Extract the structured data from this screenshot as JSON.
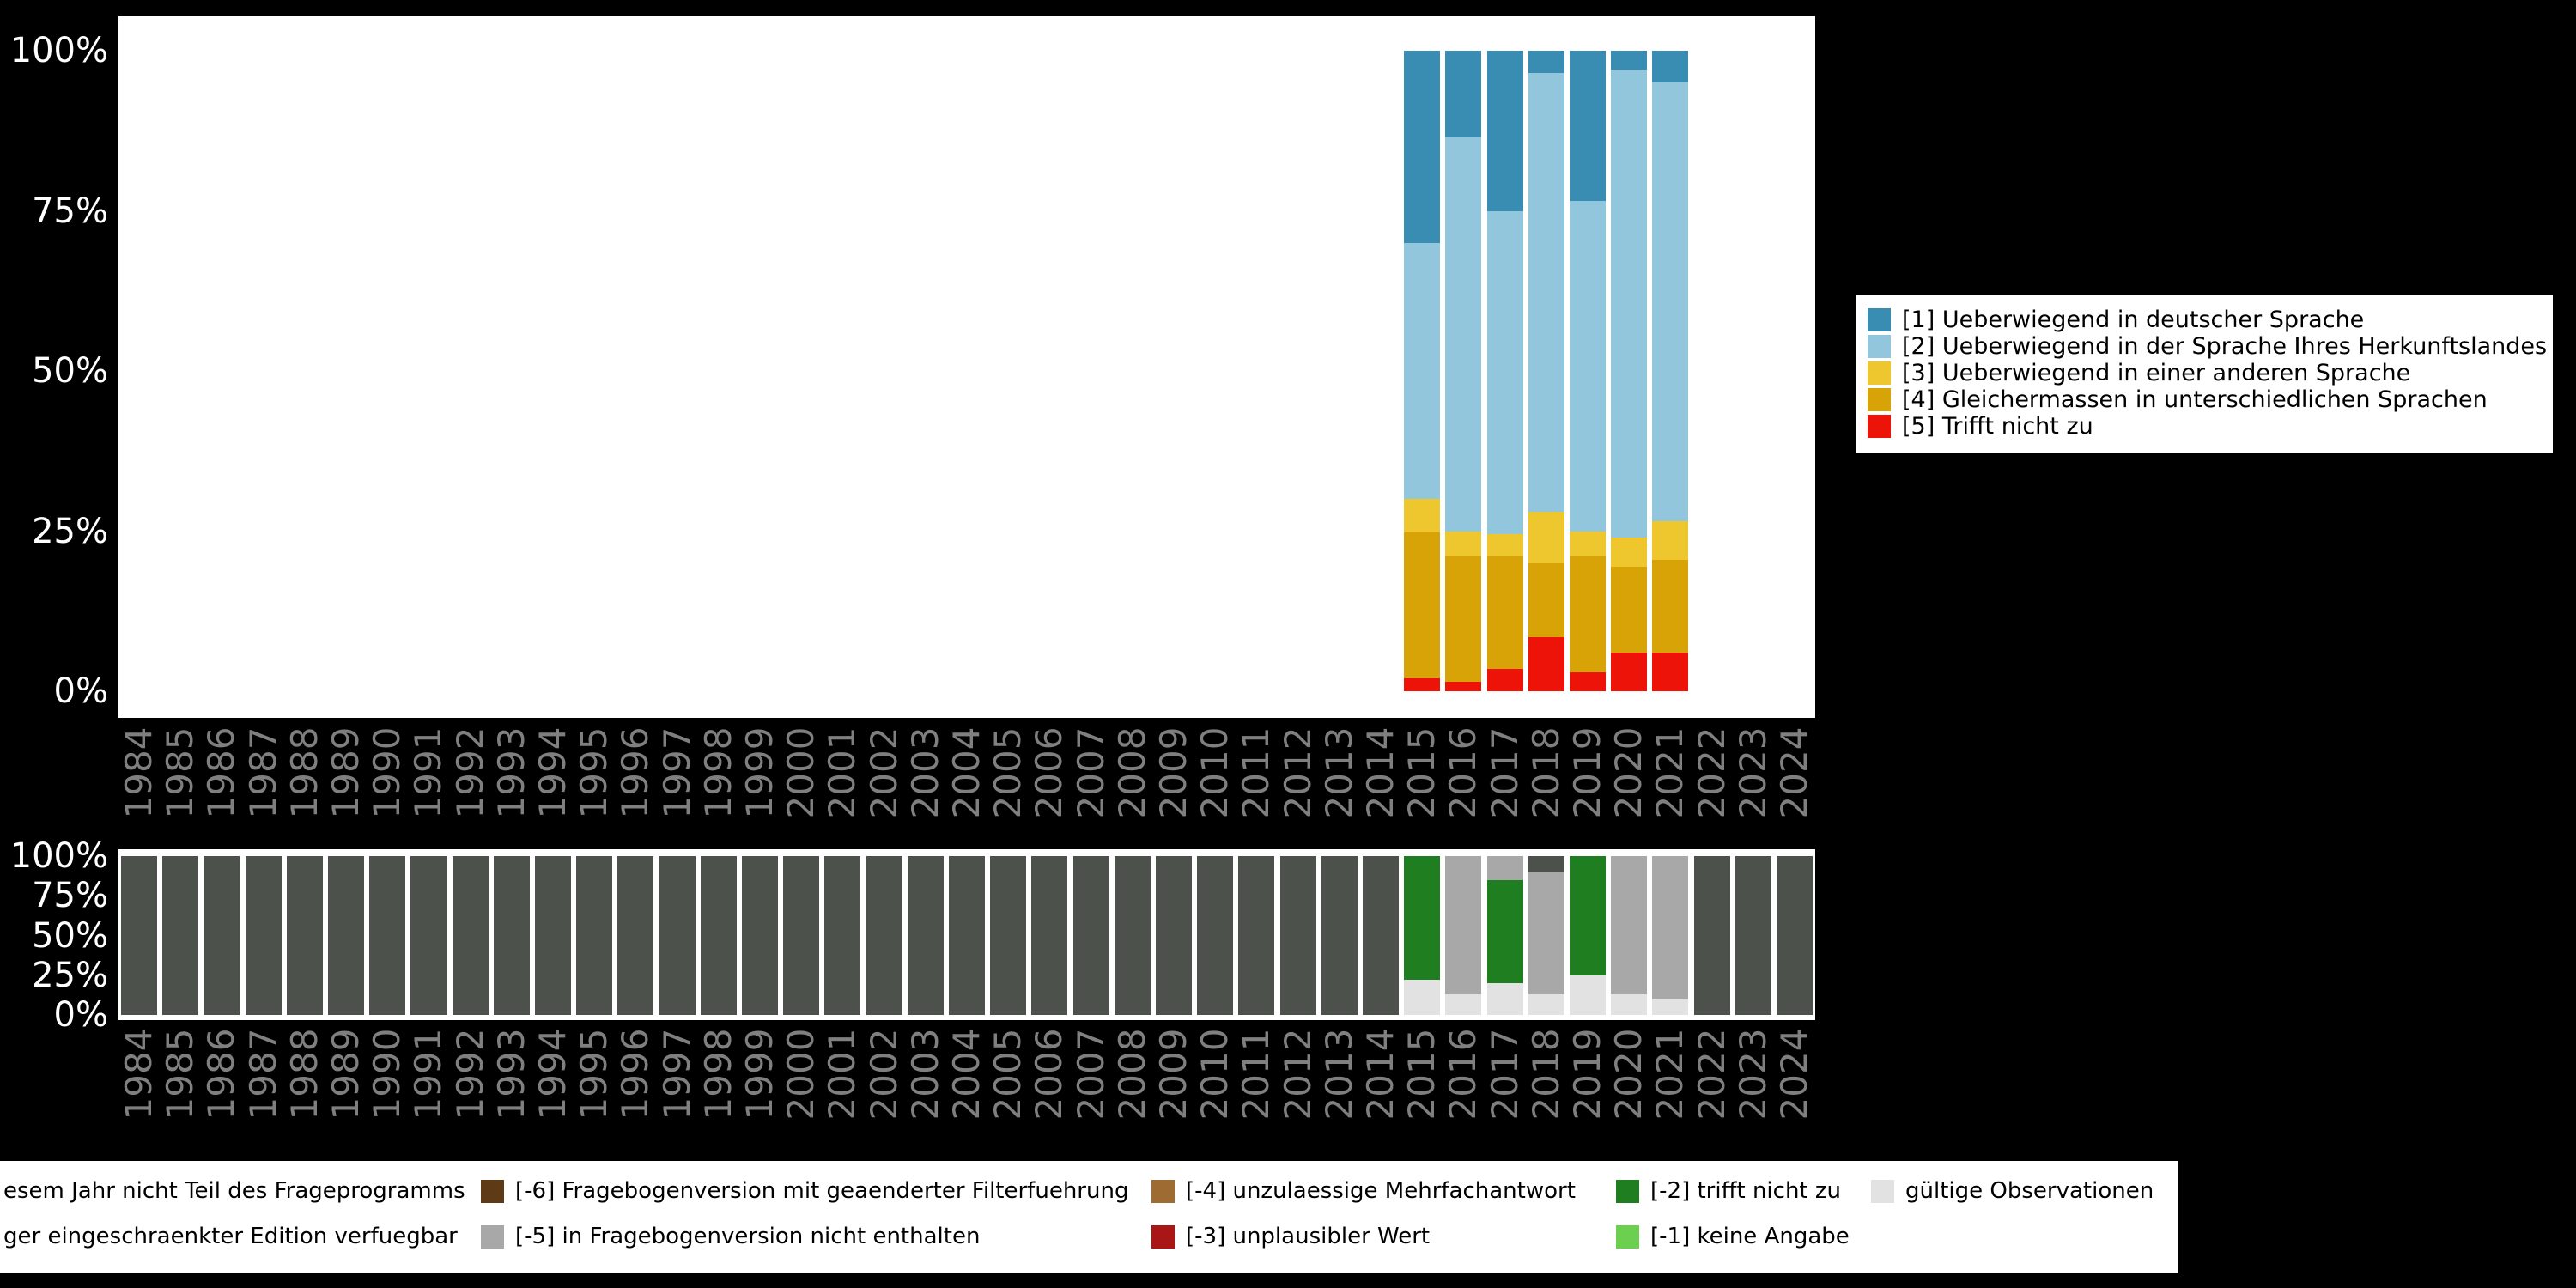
{
  "colors": {
    "background": "#000000",
    "plot_bg": "#ffffff",
    "tick_label": "#ffffff",
    "year_label": "#7f7f7f",
    "legend_bg": "#ffffff",
    "legend_text": "#000000",
    "cat1": "#3a8db2",
    "cat2": "#92c6dd",
    "cat3": "#edc72d",
    "cat4": "#d8a307",
    "cat5": "#ee1309",
    "not_in_program": "#4c524b",
    "not_in_version": "#a8a8a8",
    "valid": "#e2e2e2",
    "minus1": "#6ccf4f",
    "minus2": "#1f7e1f",
    "minus3": "#a81616",
    "minus4": "#9e6b33",
    "minus6": "#5e3a16"
  },
  "years": [
    1984,
    1985,
    1986,
    1987,
    1988,
    1989,
    1990,
    1991,
    1992,
    1993,
    1994,
    1995,
    1996,
    1997,
    1998,
    1999,
    2000,
    2001,
    2002,
    2003,
    2004,
    2005,
    2006,
    2007,
    2008,
    2009,
    2010,
    2011,
    2012,
    2013,
    2014,
    2015,
    2016,
    2017,
    2018,
    2019,
    2020,
    2021,
    2022,
    2023,
    2024
  ],
  "chart_data": [
    {
      "id": "answers-by-year",
      "type": "bar",
      "stacked": true,
      "value_unit": "percent",
      "ylim": [
        0,
        100
      ],
      "grid": false,
      "legend_position": "right",
      "y_ticks": [
        {
          "label": "100%",
          "pct": 100
        },
        {
          "label": "75%",
          "pct": 75
        },
        {
          "label": "50%",
          "pct": 50
        },
        {
          "label": "25%",
          "pct": 25
        },
        {
          "label": "0%",
          "pct": 0
        }
      ],
      "bar_years": [
        2015,
        2016,
        2017,
        2018,
        2019,
        2020,
        2021
      ],
      "series": [
        {
          "label": "[1] Ueberwiegend in deutscher Sprache",
          "color_key": "cat1",
          "values": [
            30,
            13.5,
            25,
            3.5,
            23.5,
            3,
            5
          ]
        },
        {
          "label": "[2] Ueberwiegend in der Sprache Ihres Herkunftslandes",
          "color_key": "cat2",
          "values": [
            40,
            61.5,
            50.5,
            68.5,
            51.5,
            73,
            68.5
          ]
        },
        {
          "label": "[3] Ueberwiegend in einer anderen Sprache",
          "color_key": "cat3",
          "values": [
            5,
            4,
            3.5,
            8,
            4,
            4.5,
            6
          ]
        },
        {
          "label": "[4] Gleichermassen in unterschiedlichen Sprachen",
          "color_key": "cat4",
          "values": [
            23,
            19.5,
            17.5,
            11.5,
            18,
            13.5,
            14.5
          ]
        },
        {
          "label": "[5] Trifft nicht zu",
          "color_key": "cat5",
          "values": [
            2,
            1.5,
            3.5,
            8.5,
            3,
            6,
            6
          ]
        }
      ]
    },
    {
      "id": "missings-by-year",
      "type": "bar",
      "stacked": true,
      "value_unit": "percent",
      "ylim": [
        0,
        100
      ],
      "grid": false,
      "y_ticks": [
        {
          "label": "100%",
          "pct": 100
        },
        {
          "label": "75%",
          "pct": 75
        },
        {
          "label": "50%",
          "pct": 50
        },
        {
          "label": "25%",
          "pct": 25
        },
        {
          "label": "0%",
          "pct": 0
        }
      ],
      "default_segments": [
        {
          "color_key": "not_in_program",
          "pct": 100
        }
      ],
      "overrides": {
        "2015": [
          {
            "color_key": "valid",
            "pct": 22
          },
          {
            "color_key": "minus2",
            "pct": 78
          }
        ],
        "2016": [
          {
            "color_key": "valid",
            "pct": 13
          },
          {
            "color_key": "not_in_version",
            "pct": 87
          }
        ],
        "2017": [
          {
            "color_key": "valid",
            "pct": 20
          },
          {
            "color_key": "minus2",
            "pct": 65
          },
          {
            "color_key": "not_in_version",
            "pct": 15
          }
        ],
        "2018": [
          {
            "color_key": "valid",
            "pct": 13
          },
          {
            "color_key": "not_in_version",
            "pct": 77
          },
          {
            "color_key": "not_in_program",
            "pct": 10
          }
        ],
        "2019": [
          {
            "color_key": "valid",
            "pct": 25
          },
          {
            "color_key": "minus2",
            "pct": 75
          }
        ],
        "2020": [
          {
            "color_key": "valid",
            "pct": 13
          },
          {
            "color_key": "not_in_version",
            "pct": 87
          }
        ],
        "2021": [
          {
            "color_key": "valid",
            "pct": 10
          },
          {
            "color_key": "not_in_version",
            "pct": 90
          }
        ]
      }
    }
  ],
  "top_legend": {
    "items": [
      {
        "label": "[1] Ueberwiegend in deutscher Sprache",
        "color_key": "cat1"
      },
      {
        "label": "[2] Ueberwiegend in der Sprache Ihres Herkunftslandes",
        "color_key": "cat2"
      },
      {
        "label": "[3] Ueberwiegend in einer anderen Sprache",
        "color_key": "cat3"
      },
      {
        "label": "[4] Gleichermassen in unterschiedlichen Sprachen",
        "color_key": "cat4"
      },
      {
        "label": "[5] Trifft nicht zu",
        "color_key": "cat5"
      }
    ]
  },
  "bottom_legend": {
    "rows": [
      {
        "items": [
          {
            "label": "esem Jahr nicht Teil des Frageprogramms",
            "color_key": null
          },
          {
            "label": "[-6] Fragebogenversion mit geaenderter Filterfuehrung",
            "color_key": "minus6"
          },
          {
            "label": "[-4] unzulaessige Mehrfachantwort",
            "color_key": "minus4"
          },
          {
            "label": "[-2] trifft nicht zu",
            "color_key": "minus2"
          },
          {
            "label": "gültige Observationen",
            "color_key": "valid"
          }
        ]
      },
      {
        "items": [
          {
            "label": "ger eingeschraenkter Edition verfuegbar",
            "color_key": null
          },
          {
            "label": "[-5] in Fragebogenversion nicht enthalten",
            "color_key": "not_in_version"
          },
          {
            "label": "[-3] unplausibler Wert",
            "color_key": "minus3"
          },
          {
            "label": "[-1] keine Angabe",
            "color_key": "minus1"
          }
        ]
      }
    ]
  }
}
